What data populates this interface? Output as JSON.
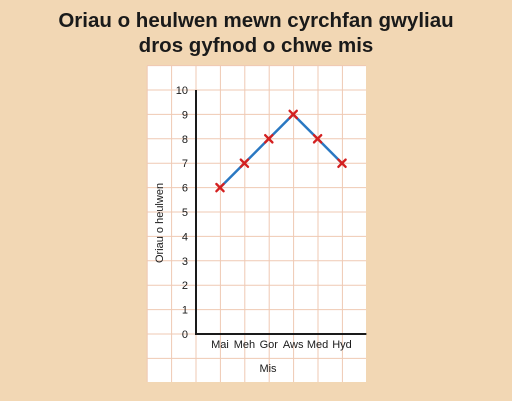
{
  "chart_data": {
    "type": "line",
    "title_lines": [
      "Oriau o heulwen mewn cyrchfan gwyliau",
      "dros gyfnod o chwe mis"
    ],
    "xlabel": "Mis",
    "ylabel": "Oriau o heulwen",
    "categories": [
      "Mai",
      "Meh",
      "Gor",
      "Aws",
      "Med",
      "Hyd"
    ],
    "values": [
      6,
      7,
      8,
      9,
      8,
      7
    ],
    "y_ticks": [
      "0",
      "1",
      "2",
      "3",
      "4",
      "5",
      "6",
      "7",
      "8",
      "9",
      "10"
    ],
    "ylim": [
      0,
      10
    ],
    "grid": true,
    "line_color": "#2a78c2",
    "marker_color": "#d42020",
    "marker": "cross",
    "background_color": "#f2d7b4",
    "plot_background_color": "#ffffff"
  }
}
